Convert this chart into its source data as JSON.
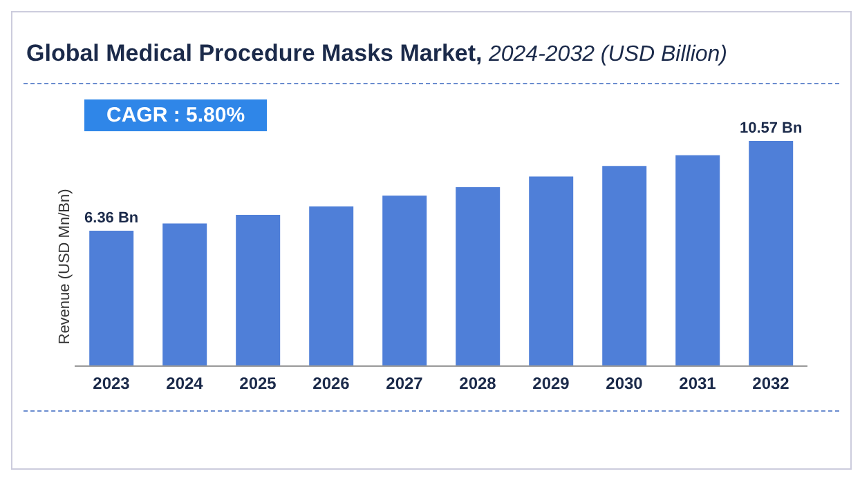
{
  "chart_data": {
    "type": "bar",
    "title": "Global Medical Procedure Masks Market,",
    "subtitle": "2024-2032 (USD Billion)",
    "ylabel": "Revenue (USD Mn/Bn)",
    "annotations": [
      "CAGR : 5.80%"
    ],
    "categories": [
      "2023",
      "2024",
      "2025",
      "2026",
      "2027",
      "2028",
      "2029",
      "2030",
      "2031",
      "2032"
    ],
    "values": [
      6.36,
      6.7,
      7.1,
      7.5,
      8.0,
      8.4,
      8.9,
      9.4,
      9.9,
      10.57
    ],
    "value_labels": [
      "6.36 Bn",
      null,
      null,
      null,
      null,
      null,
      null,
      null,
      null,
      "10.57 Bn"
    ],
    "color": "#4f7fd8"
  }
}
